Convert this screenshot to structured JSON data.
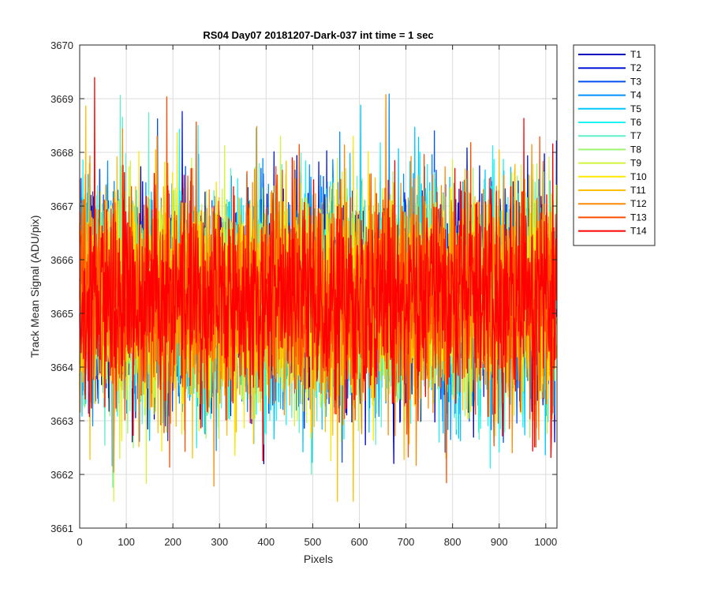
{
  "chart_data": {
    "type": "line",
    "title": "RS04 Day07 20181207-Dark-037 int time = 1 sec",
    "xlabel": "Pixels",
    "ylabel": "Track Mean Signal (ADU/pix)",
    "xlim": [
      0,
      1024
    ],
    "ylim": [
      3661,
      3670
    ],
    "xticks": [
      0,
      100,
      200,
      300,
      400,
      500,
      600,
      700,
      800,
      900,
      1000
    ],
    "yticks": [
      3661,
      3662,
      3663,
      3664,
      3665,
      3666,
      3667,
      3668,
      3669,
      3670
    ],
    "grid": true,
    "legend_position": "outside-top-right",
    "data_summary": {
      "n_points_per_series": 1024,
      "center": 3665.3,
      "typical_range": [
        3663.0,
        3668.0
      ]
    },
    "series": [
      {
        "name": "T1",
        "color": "#0000bf"
      },
      {
        "name": "T2",
        "color": "#0017d9"
      },
      {
        "name": "T3",
        "color": "#0050f0"
      },
      {
        "name": "T4",
        "color": "#0090ff"
      },
      {
        "name": "T5",
        "color": "#00c8ff"
      },
      {
        "name": "T6",
        "color": "#1ef2f2"
      },
      {
        "name": "T7",
        "color": "#5ff0c8"
      },
      {
        "name": "T8",
        "color": "#9cf56e"
      },
      {
        "name": "T9",
        "color": "#d2f53c"
      },
      {
        "name": "T10",
        "color": "#ffe800"
      },
      {
        "name": "T11",
        "color": "#ffbe00"
      },
      {
        "name": "T12",
        "color": "#ff8a00"
      },
      {
        "name": "T13",
        "color": "#ff4d00"
      },
      {
        "name": "T14",
        "color": "#ff0000"
      }
    ]
  }
}
